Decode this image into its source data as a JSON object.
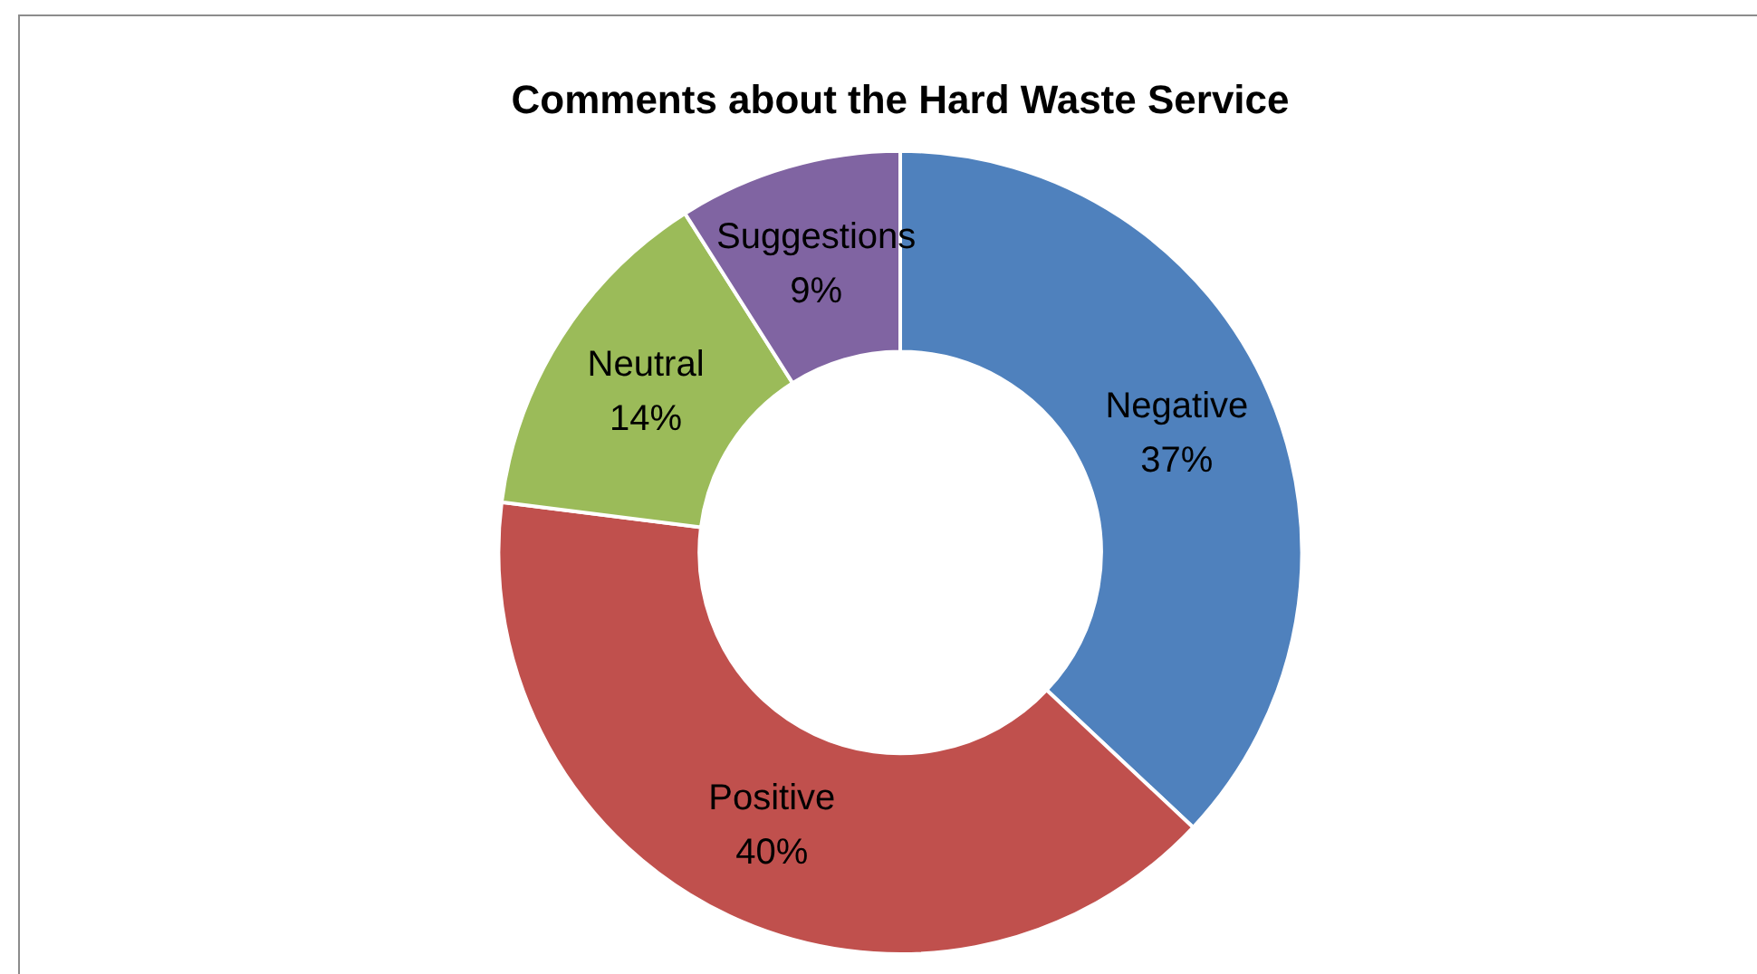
{
  "chart_data": {
    "type": "donut",
    "title": "Comments about the Hard Waste Service",
    "categories": [
      "Negative",
      "Positive",
      "Neutral",
      "Suggestions"
    ],
    "values": [
      37,
      40,
      14,
      9
    ],
    "value_labels": [
      "37%",
      "40%",
      "14%",
      "9%"
    ],
    "colors": [
      "#4f81bd",
      "#c0504d",
      "#9bbb59",
      "#8064a2"
    ],
    "legend": false
  }
}
